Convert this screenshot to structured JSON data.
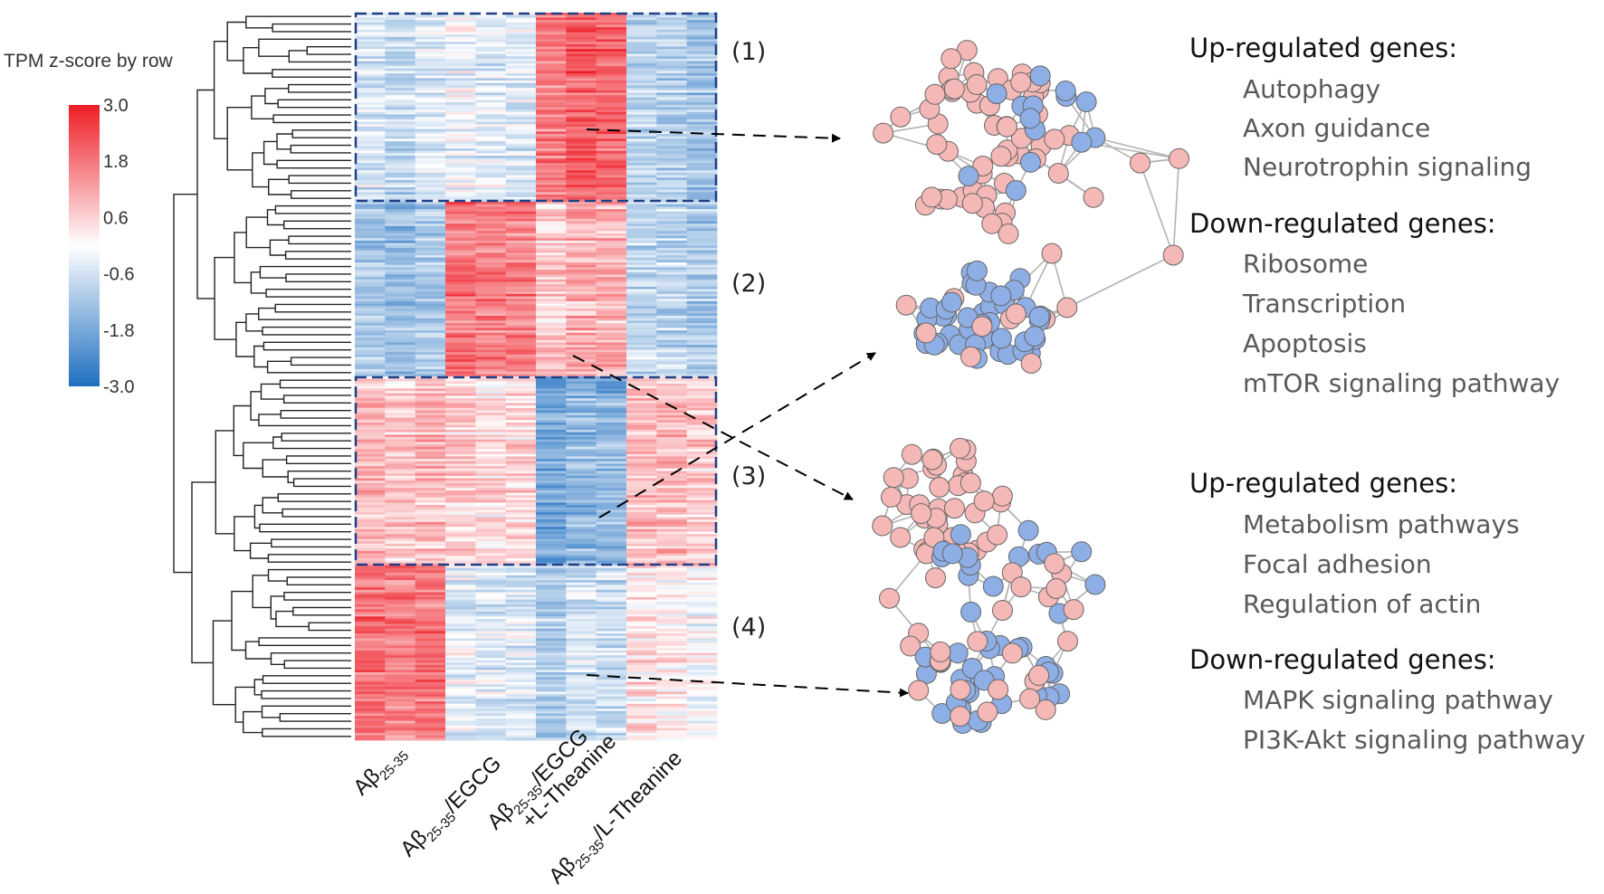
{
  "chart_data": {
    "type": "heatmap",
    "legend_title": "TPM z-score by row",
    "color_scale": {
      "min": -3.0,
      "max": 3.0,
      "colors": [
        "#1f6fc0",
        "#ffffff",
        "#ee1c25"
      ],
      "ticks": [
        "3.0",
        "1.8",
        "0.6",
        "-0.6",
        "-1.8",
        "-3.0"
      ]
    },
    "columns": [
      {
        "base": "Aβ",
        "sub": "25-35",
        "suffix": "",
        "line2": ""
      },
      {
        "base": "Aβ",
        "sub": "25-35",
        "suffix": "/EGCG",
        "line2": ""
      },
      {
        "base": "Aβ",
        "sub": "25-35",
        "suffix": "/EGCG",
        "line2": "+L-Theanine"
      },
      {
        "base": "Aβ",
        "sub": "25-35",
        "suffix": "/L-Theanine",
        "line2": ""
      }
    ],
    "replicates_per_group": 3,
    "clusters": [
      {
        "label": "(1)",
        "fraction": 0.26,
        "group_means": [
          -0.6,
          -0.5,
          1.9,
          -1.1
        ]
      },
      {
        "label": "(2)",
        "fraction": 0.24,
        "group_means": [
          -1.2,
          1.6,
          0.9,
          -1.0
        ]
      },
      {
        "label": "(3)",
        "fraction": 0.26,
        "group_means": [
          0.8,
          0.3,
          -1.7,
          0.7
        ]
      },
      {
        "label": "(4)",
        "fraction": 0.24,
        "group_means": [
          1.8,
          -0.6,
          -0.8,
          0.1
        ]
      }
    ]
  },
  "annotations": [
    {
      "up_title": "Up-regulated genes:",
      "up_items": [
        "Autophagy",
        "Axon guidance",
        "Neurotrophin signaling"
      ],
      "down_title": "Down-regulated genes:",
      "down_items": [
        "Ribosome",
        "Transcription",
        "Apoptosis",
        "mTOR signaling pathway"
      ]
    },
    {
      "up_title": "Up-regulated genes:",
      "up_items": [
        "Metabolism pathways",
        "Focal adhesion",
        "Regulation of actin"
      ],
      "down_title": "Down-regulated genes:",
      "down_items": [
        "MAPK signaling pathway",
        "PI3K-Akt signaling pathway"
      ]
    }
  ],
  "colors": {
    "up_node": "#f4b8b6",
    "down_node": "#8eaee6",
    "edge": "#b3b3b3",
    "box": "#1f3f86"
  }
}
